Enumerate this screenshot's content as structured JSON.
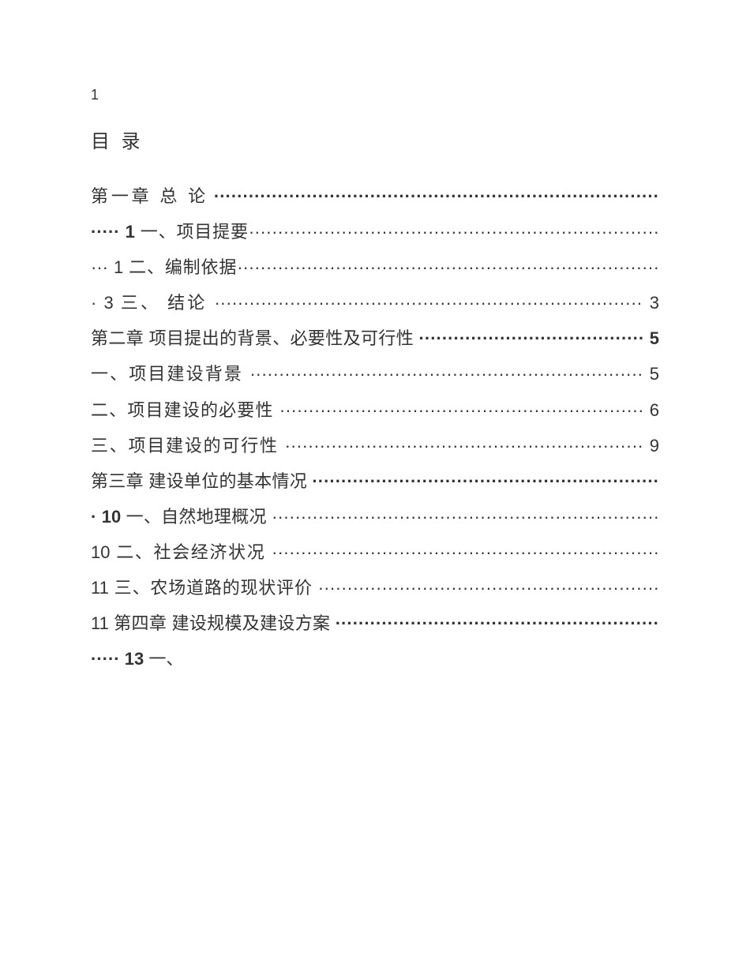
{
  "page_number": "1",
  "toc_title": "目 录",
  "chapter1_title": "第一章 总 论",
  "chapter1_dots": " ·················································································· ",
  "chapter1_page": "1",
  "item1_1_label": " 一、项目提要",
  "item1_1_dots": "·········································································· ",
  "item1_1_page": "1",
  "item1_2_label": " 二、编制依据",
  "item1_2_dots": "·········································································· ",
  "item1_2_page": "3",
  "item1_3_label": " 三、 结论 ",
  "item1_3_dots": "·········································································· ",
  "item1_3_page": "3",
  "chapter2_title": " 第二章 项目提出的背景、必要性及可行性",
  "chapter2_dots": " ······································· ",
  "chapter2_page": "5",
  "item2_1_label": " 一、项目建设背景 ",
  "item2_1_dots": "···································································· ",
  "item2_1_page": "5 ",
  "item2_2_label": "二、项目建设的必要性 ",
  "item2_2_dots": "······························································· ",
  "item2_2_page": "6",
  "item2_3_label": " 三、项目建设的可行性 ",
  "item2_3_dots": "······························································ ",
  "item2_3_page": "9",
  "chapter3_title": " 第三章 建设单位的基本情况",
  "chapter3_dots": " ····························································· ",
  "chapter3_page": "10",
  "item3_1_label": " 一、自然地理概况 ",
  "item3_1_dots": "··································································· ",
  "item3_1_page": "10 ",
  "item3_2_label": "二、社会经济状况 ",
  "item3_2_dots": "··································································· ",
  "item3_2_page": "11 ",
  "item3_3_label": "三、农场道路的现状评价 ",
  "item3_3_dots": "··························································· ",
  "item3_3_page": "11",
  "chapter4_title": " 第四章 建设规模及建设方案",
  "chapter4_dots": " ····························································· ",
  "chapter4_page": "13",
  "item4_1_label": " 一、"
}
